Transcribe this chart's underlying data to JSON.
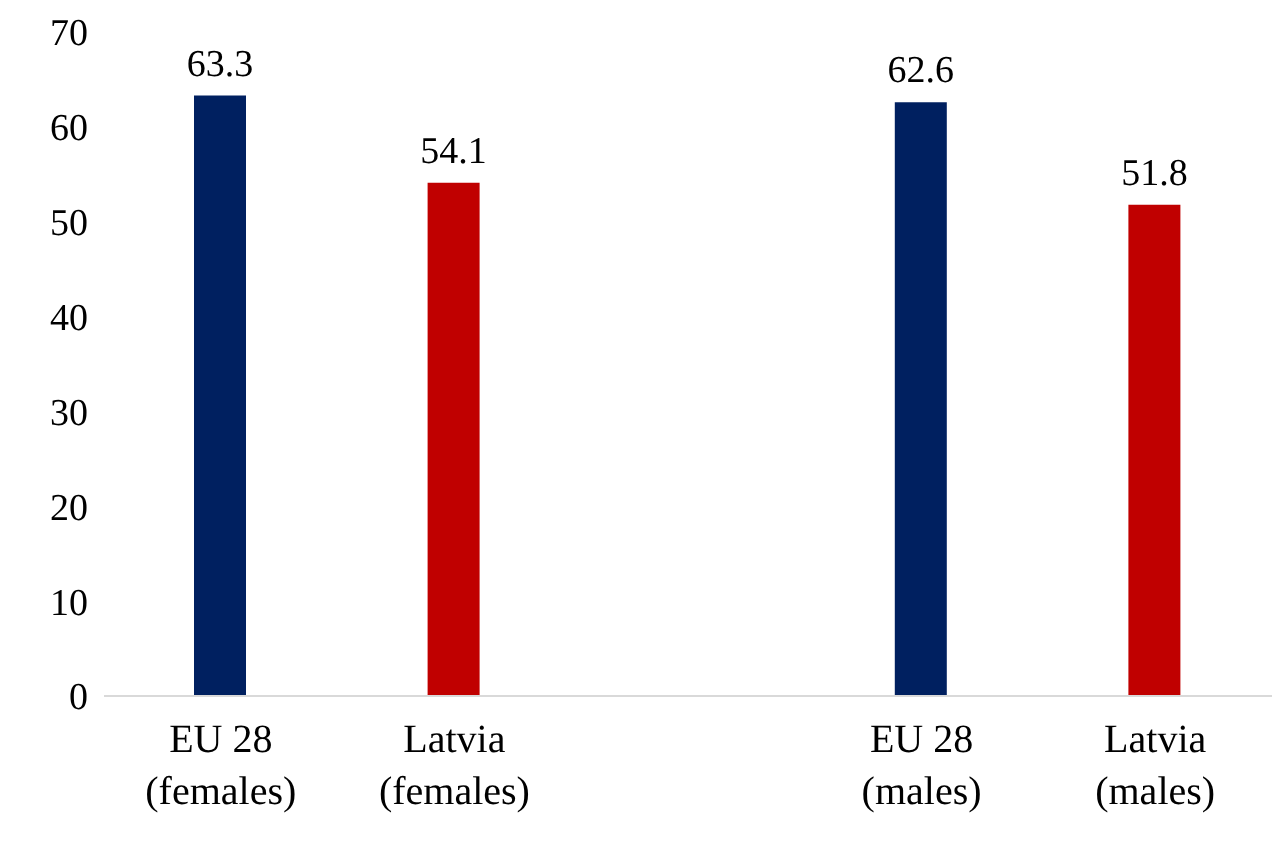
{
  "chart_data": {
    "type": "bar",
    "categories": [
      "EU 28\n(females)",
      "Latvia\n(females)",
      null,
      "EU 28\n(males)",
      "Latvia\n(males)"
    ],
    "values": [
      63.3,
      54.1,
      null,
      62.6,
      51.8
    ],
    "colors": [
      "#002060",
      "#c00000",
      "#c00000",
      "#002060",
      "#c00000"
    ],
    "ylim": [
      0,
      70
    ],
    "yticks": [
      0,
      10,
      20,
      30,
      40,
      50,
      60,
      70
    ],
    "grid": false,
    "data_labels": true
  }
}
